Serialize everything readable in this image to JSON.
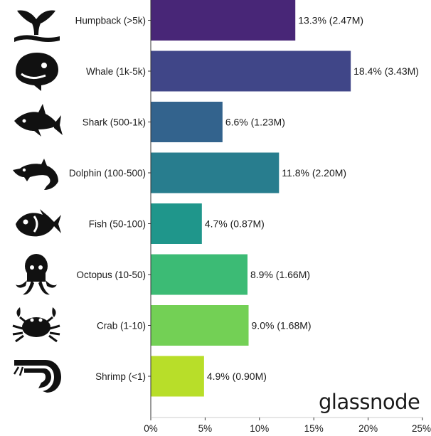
{
  "chart_data": {
    "type": "bar",
    "orientation": "horizontal",
    "categories": [
      "Humpback (>5k)",
      "Whale (1k-5k)",
      "Shark (500-1k)",
      "Dolphin (100-500)",
      "Fish (50-100)",
      "Octopus (10-50)",
      "Crab (1-10)",
      "Shrimp (<1)"
    ],
    "values": [
      13.3,
      18.4,
      6.6,
      11.8,
      4.7,
      8.9,
      9.0,
      4.9
    ],
    "data_labels": [
      "13.3% (2.47M)",
      "18.4% (3.43M)",
      "6.6% (1.23M)",
      "11.8% (2.20M)",
      "4.7% (0.87M)",
      "8.9% (1.66M)",
      "9.0% (1.68M)",
      "4.9% (0.90M)"
    ],
    "colors": [
      "#482677",
      "#404688",
      "#33638d",
      "#287d8e",
      "#1f968b",
      "#3cbb75",
      "#73d055",
      "#b8de29"
    ],
    "xlim": [
      0,
      25
    ],
    "xticks": [
      0,
      5,
      10,
      15,
      20,
      25
    ],
    "xtick_labels": [
      "0%",
      "5%",
      "10%",
      "15%",
      "20%",
      "25%"
    ],
    "grid": false,
    "title": "",
    "xlabel": "",
    "ylabel": ""
  },
  "icons": [
    "whale-tail-icon",
    "whale-icon",
    "shark-icon",
    "dolphin-icon",
    "fish-icon",
    "octopus-icon",
    "crab-icon",
    "shrimp-icon"
  ],
  "watermark": "glassnode"
}
